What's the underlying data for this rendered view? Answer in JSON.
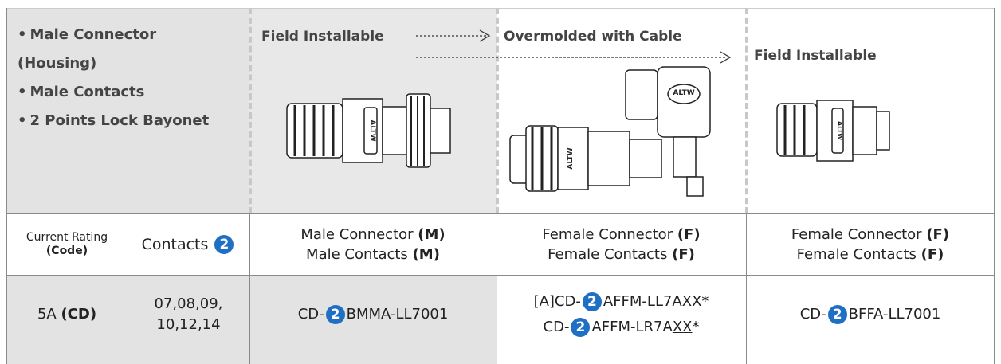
{
  "features": [
    [
      "Male Connector",
      "(Housing)"
    ],
    [
      "Male Contacts"
    ],
    [
      "2 Points Lock Bayonet"
    ]
  ],
  "brand": "ALTW",
  "images": [
    {
      "label": "Field Installable"
    },
    {
      "label": "Overmolded with Cable"
    },
    {
      "label": "Field Installable"
    }
  ],
  "header": {
    "rating": [
      "Current Rating",
      "(Code)"
    ],
    "contacts": "Contacts",
    "badge": "2",
    "columns": [
      [
        [
          "Male Connector",
          "(M)"
        ],
        [
          "Male Contacts",
          "(M)"
        ]
      ],
      [
        [
          "Female Connector",
          "(F)"
        ],
        [
          "Female Contacts",
          "(F)"
        ]
      ],
      [
        [
          "Female Connector",
          "(F)"
        ],
        [
          "Female Contacts",
          "(F)"
        ]
      ]
    ]
  },
  "row": {
    "rating": "5A",
    "code": "(CD)",
    "contacts": [
      "07,08,09,",
      "10,12,14"
    ],
    "parts": [
      [
        {
          "prefix": "CD-",
          "badge": "2",
          "body": "BMMA-LL7001"
        }
      ],
      [
        {
          "prefix": "[A]CD-",
          "badge": "2",
          "body": "AFFM-LL7A",
          "var": "XX",
          "tail": "*"
        },
        {
          "prefix": "CD-",
          "badge": "2",
          "body": "AFFM-LR7A",
          "var": "XX",
          "tail": "*"
        }
      ],
      [
        {
          "prefix": "CD-",
          "badge": "2",
          "body": "BFFA-LL7001"
        }
      ]
    ]
  }
}
